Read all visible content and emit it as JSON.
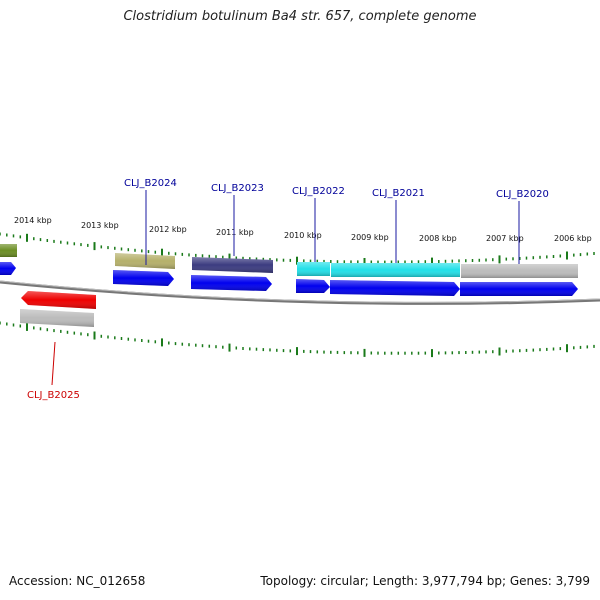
{
  "header": {
    "title": "Clostridium botulinum Ba4 str. 657, complete genome"
  },
  "footer": {
    "accession": "Accession: NC_012658",
    "summary": "Topology: circular; Length: 3,977,794 bp; Genes: 3,799"
  },
  "kbp_labels": [
    "2014 kbp",
    "2013 kbp",
    "2012 kbp",
    "2011 kbp",
    "2010 kbp",
    "2009 kbp",
    "2008 kbp",
    "2007 kbp",
    "2006 kbp"
  ],
  "genes": [
    {
      "name": "CLJ_B2025",
      "color": "#cc0000"
    },
    {
      "name": "CLJ_B2024",
      "color": "#000099"
    },
    {
      "name": "CLJ_B2023",
      "color": "#000099"
    },
    {
      "name": "CLJ_B2022",
      "color": "#000099"
    },
    {
      "name": "CLJ_B2021",
      "color": "#000099"
    },
    {
      "name": "CLJ_B2020",
      "color": "#000099"
    }
  ],
  "colors": {
    "cds": "#0000ee",
    "tick": "#1a7a1a",
    "backbone": "#808080",
    "feature_olive": "#6b8e23",
    "feature_khaki": "#b5b06a",
    "feature_navy": "#3b3b80",
    "feature_cyan": "#22e0e8",
    "feature_gray": "#bbbbbb",
    "feature_red": "#ee0000"
  }
}
